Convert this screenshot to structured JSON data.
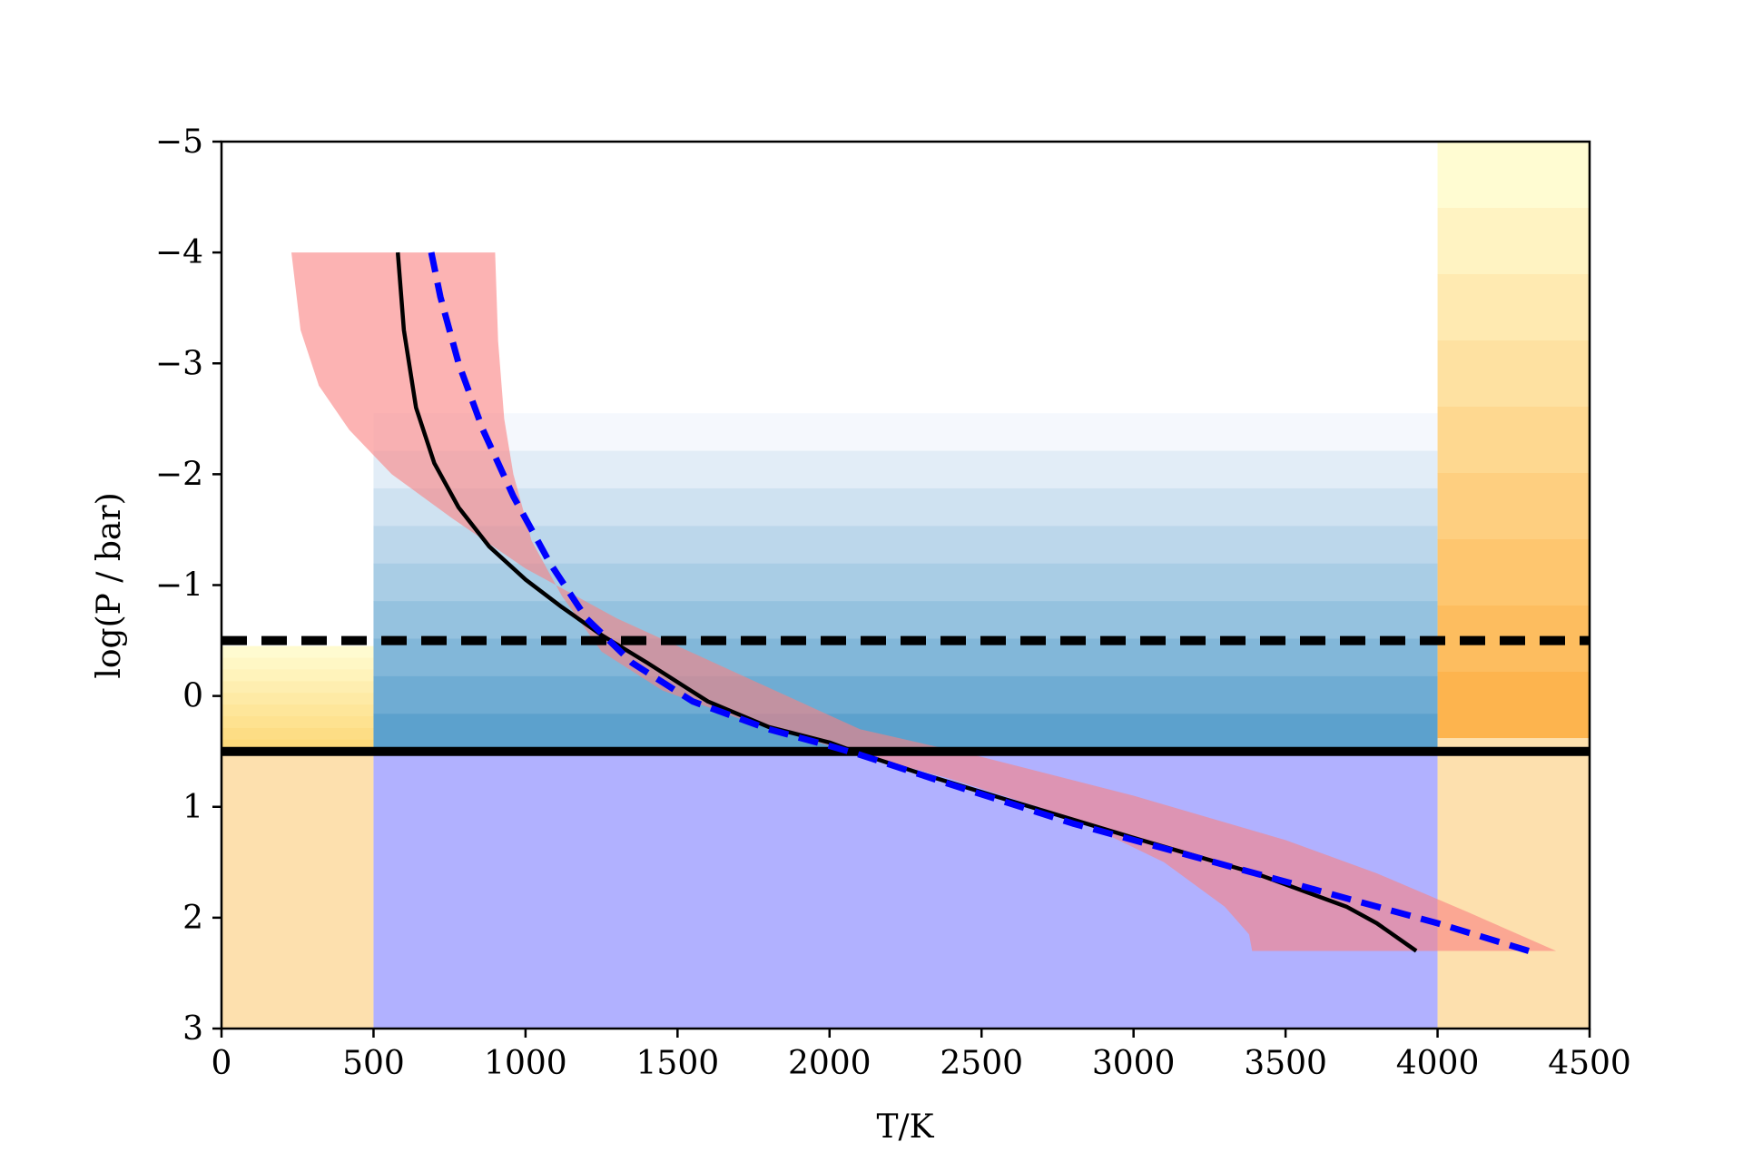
{
  "chart_data": {
    "type": "line",
    "title": "",
    "xlabel": "T/K",
    "ylabel": "log(P / bar)",
    "xlim": [
      0,
      4500
    ],
    "ylim": [
      3,
      -5
    ],
    "y_axis_inverted": true,
    "grid": false,
    "x_ticks": [
      "0",
      "500",
      "1000",
      "1500",
      "2000",
      "2500",
      "3000",
      "3500",
      "4000",
      "4500"
    ],
    "y_ticks": [
      "−5",
      "−4",
      "−3",
      "−2",
      "−1",
      "0",
      "1",
      "2",
      "3"
    ],
    "series": [
      {
        "style": "solid",
        "color": "#000000",
        "x": [
          580,
          600,
          640,
          700,
          780,
          880,
          1000,
          1120,
          1250,
          1400,
          1600,
          1800,
          2000,
          2100,
          2300,
          2600,
          3000,
          3400,
          3700,
          3800,
          3930
        ],
        "y": [
          -4.0,
          -3.3,
          -2.6,
          -2.1,
          -1.7,
          -1.35,
          -1.05,
          -0.8,
          -0.55,
          -0.3,
          0.05,
          0.28,
          0.42,
          0.52,
          0.7,
          0.95,
          1.28,
          1.6,
          1.9,
          2.05,
          2.3
        ]
      },
      {
        "style": "dashed",
        "color": "#0000ff",
        "x": [
          690,
          720,
          780,
          860,
          960,
          1080,
          1200,
          1350,
          1550,
          1800,
          2000,
          2100,
          2400,
          2800,
          3200,
          3600,
          4000,
          4300
        ],
        "y": [
          -4.0,
          -3.6,
          -3.0,
          -2.4,
          -1.8,
          -1.2,
          -0.7,
          -0.3,
          0.05,
          0.3,
          0.45,
          0.53,
          0.8,
          1.15,
          1.45,
          1.75,
          2.05,
          2.3
        ]
      },
      {
        "style": "band",
        "color": "#fa8080",
        "upper_x": [
          230,
          260,
          320,
          420,
          560,
          760,
          1000,
          1300,
          1700,
          2100,
          2500,
          3000,
          3500,
          3800,
          4100,
          4390
        ],
        "upper_y": [
          -4.0,
          -3.3,
          -2.8,
          -2.4,
          -2.0,
          -1.6,
          -1.15,
          -0.7,
          -0.2,
          0.3,
          0.55,
          0.9,
          1.3,
          1.6,
          1.95,
          2.3
        ],
        "lower_x": [
          900,
          910,
          930,
          960,
          1020,
          1120,
          1250,
          1450,
          1700,
          2000,
          2400,
          2800,
          3100,
          3300,
          3380,
          3390
        ],
        "lower_y": [
          -4.0,
          -3.2,
          -2.5,
          -2.0,
          -1.4,
          -0.9,
          -0.4,
          -0.05,
          0.2,
          0.45,
          0.75,
          1.1,
          1.5,
          1.9,
          2.15,
          2.3
        ]
      }
    ],
    "reference_lines": [
      {
        "style": "dashed",
        "color": "#000000",
        "y": -0.5
      },
      {
        "style": "solid",
        "color": "#000000",
        "y": 0.5
      }
    ],
    "shaded_regions": [
      {
        "name": "left-upper-gradient",
        "x": [
          0,
          500
        ],
        "y": [
          -0.45,
          0.5
        ],
        "colors": [
          "#fffbd0",
          "#fdd97a"
        ]
      },
      {
        "name": "left-lower",
        "x": [
          0,
          500
        ],
        "y": [
          0.5,
          3
        ],
        "color": "#fde0ae"
      },
      {
        "name": "middle-upper-gradient",
        "x": [
          500,
          4000
        ],
        "y": [
          -2.55,
          0.5
        ],
        "colors": [
          "#f5f8fd",
          "#5ca1cd"
        ]
      },
      {
        "name": "middle-lower",
        "x": [
          500,
          4000
        ],
        "y": [
          0.5,
          3
        ],
        "color": "#b1b1ff"
      },
      {
        "name": "right-upper-gradient",
        "x": [
          4000,
          4500
        ],
        "y": [
          -5,
          0.38
        ],
        "colors": [
          "#fffcd2",
          "#fdb44e"
        ]
      },
      {
        "name": "right-lower",
        "x": [
          4000,
          4500
        ],
        "y": [
          0.38,
          3
        ],
        "color": "#fde0ae"
      }
    ]
  }
}
